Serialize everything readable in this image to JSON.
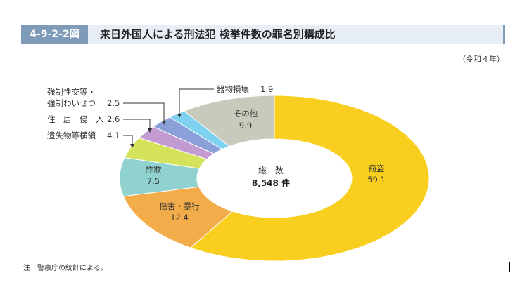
{
  "header": {
    "figure_no": "4-9-2-2図",
    "title": "来日外国人による刑法犯 検挙件数の罪名別構成比"
  },
  "year_note": "（令和４年）",
  "footnote": "注　警察庁の統計による。",
  "center": {
    "label": "総　数",
    "value": "8,548 件"
  },
  "chart_data": {
    "type": "pie",
    "style": "donut",
    "title": "来日外国人による刑法犯 検挙件数の罪名別構成比",
    "unit": "%",
    "total": "8,548 件",
    "slices": [
      {
        "name": "窃盗",
        "value": 59.1,
        "color": "#f8cf1e"
      },
      {
        "name": "傷害・暴行",
        "value": 12.4,
        "color": "#f2ad4a"
      },
      {
        "name": "詐欺",
        "value": 7.5,
        "color": "#8fd2cf"
      },
      {
        "name": "遺失物等横領",
        "value": 4.1,
        "color": "#d4e35a"
      },
      {
        "name": "住居侵入",
        "value": 2.6,
        "color": "#c39ad2"
      },
      {
        "name": "強制性交等・強制わいせつ",
        "value": 2.5,
        "color": "#8aa0d8"
      },
      {
        "name": "器物損壊",
        "value": 1.9,
        "color": "#7fd1f0"
      },
      {
        "name": "その他",
        "value": 9.9,
        "color": "#c9cabb"
      }
    ]
  },
  "labels": {
    "theft": {
      "name": "窃盗",
      "value": "59.1"
    },
    "injury": {
      "name": "傷害・暴行",
      "value": "12.4"
    },
    "fraud": {
      "name": "詐欺",
      "value": "7.5"
    },
    "embezzlement": {
      "name": "遺失物等横領",
      "value": "4.1"
    },
    "trespass": {
      "name": "住　居　侵　入",
      "value": "2.6"
    },
    "sexual": {
      "name1": "強制性交等・",
      "name2": "強制わいせつ",
      "value": "2.5"
    },
    "vandalism": {
      "name": "器物損壊",
      "value": "1.9"
    },
    "other": {
      "name": "その他",
      "value": "9.9"
    }
  }
}
